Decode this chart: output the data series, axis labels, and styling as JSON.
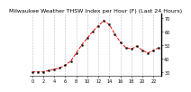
{
  "title": "Milwaukee Weather THSW Index per Hour (F) (Last 24 Hours)",
  "hours": [
    0,
    1,
    2,
    3,
    4,
    5,
    6,
    7,
    8,
    9,
    10,
    11,
    12,
    13,
    14,
    15,
    16,
    17,
    18,
    19,
    20,
    21,
    22,
    23
  ],
  "values": [
    30,
    30,
    30,
    31,
    32,
    33,
    35,
    38,
    44,
    50,
    55,
    60,
    64,
    68,
    65,
    58,
    52,
    48,
    47,
    49,
    46,
    44,
    46,
    48
  ],
  "line_color": "#ff0000",
  "marker_color": "#000000",
  "bg_color": "#ffffff",
  "plot_bg_color": "#ffffff",
  "grid_color": "#888888",
  "ylim": [
    27,
    73
  ],
  "yticks": [
    30,
    40,
    50,
    60,
    70
  ],
  "ytick_labels": [
    "30",
    "40",
    "50",
    "60",
    "70"
  ],
  "title_fontsize": 4.5,
  "tick_fontsize": 3.5,
  "linewidth": 0.7,
  "markersize": 1.2
}
